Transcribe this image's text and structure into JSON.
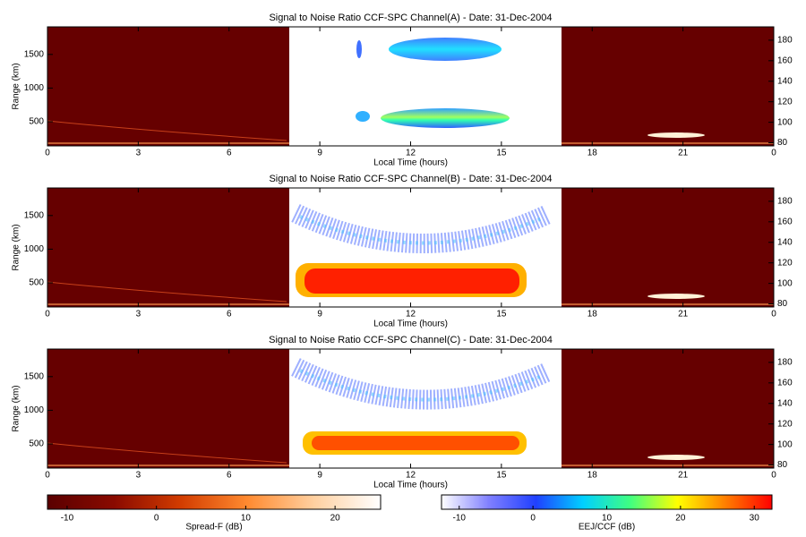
{
  "chart_data": [
    {
      "type": "heatmap",
      "title": "Signal to Noise Ratio CCF-SPC Channel(A) - Date: 31-Dec-2004",
      "xlabel": "Local Time (hours)",
      "ylabel": "Range (km)",
      "xlim": [
        0,
        24
      ],
      "xticks": [
        0,
        3,
        6,
        9,
        12,
        15,
        18,
        21,
        {
          "value": 24,
          "label": "0"
        }
      ],
      "ylim": [
        140,
        1910
      ],
      "yticks": [
        500,
        1000,
        1500
      ],
      "y2lim": [
        77,
        193
      ],
      "y2ticks": [
        80,
        100,
        120,
        140,
        160,
        180
      ]
    },
    {
      "type": "heatmap",
      "title": "Signal to Noise Ratio CCF-SPC Channel(B) - Date: 31-Dec-2004",
      "xlabel": "Local Time (hours)",
      "ylabel": "Range (km)",
      "xlim": [
        0,
        24
      ],
      "xticks": [
        0,
        3,
        6,
        9,
        12,
        15,
        18,
        21,
        {
          "value": 24,
          "label": "0"
        }
      ],
      "ylim": [
        140,
        1910
      ],
      "yticks": [
        500,
        1000,
        1500
      ],
      "y2lim": [
        77,
        193
      ],
      "y2ticks": [
        80,
        100,
        120,
        140,
        160,
        180
      ]
    },
    {
      "type": "heatmap",
      "title": "Signal to Noise Ratio CCF-SPC Channel(C) - Date: 31-Dec-2004",
      "xlabel": "Local Time (hours)",
      "ylabel": "Range (km)",
      "xlim": [
        0,
        24
      ],
      "xticks": [
        0,
        3,
        6,
        9,
        12,
        15,
        18,
        21,
        {
          "value": 24,
          "label": "0"
        }
      ],
      "ylim": [
        140,
        1910
      ],
      "yticks": [
        500,
        1000,
        1500
      ],
      "y2lim": [
        77,
        193
      ],
      "y2ticks": [
        80,
        100,
        120,
        140,
        160,
        180
      ]
    },
    {
      "type": "colorbar",
      "label": "Spread-F (dB)",
      "xlim": [
        -12.2,
        25.1
      ],
      "xticks": [
        -10,
        0,
        10,
        20
      ],
      "colors": [
        "#5a0000",
        "#8a0a00",
        "#d23c00",
        "#ff8a30",
        "#ffd0a0",
        "#ffffff"
      ]
    },
    {
      "type": "colorbar",
      "label": "EEJ/CCF (dB)",
      "xlim": [
        -12.4,
        32.4
      ],
      "xticks": [
        -10,
        0,
        10,
        20,
        30
      ],
      "colors": [
        "#ffffff",
        "#8080ff",
        "#2040ff",
        "#00d0ff",
        "#40ff80",
        "#ffff00",
        "#ff8000",
        "#ff0000"
      ]
    }
  ]
}
